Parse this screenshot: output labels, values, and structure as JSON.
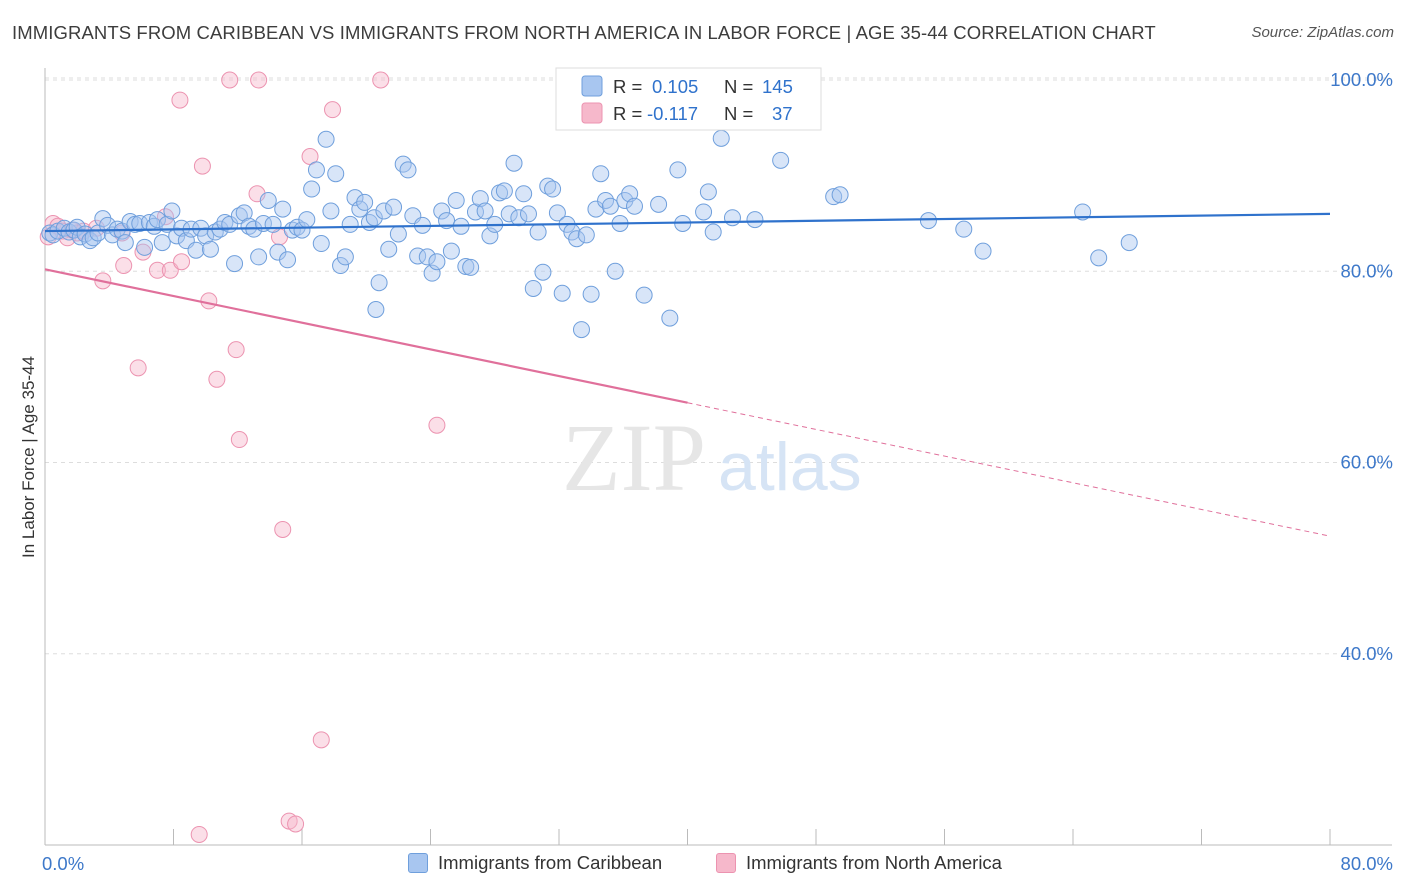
{
  "header": {
    "title": "IMMIGRANTS FROM CARIBBEAN VS IMMIGRANTS FROM NORTH AMERICA IN LABOR FORCE | AGE 35-44 CORRELATION CHART",
    "source": "Source: ZipAtlas.com"
  },
  "watermark": {
    "zip": "ZIP",
    "atlas": "atlas"
  },
  "legend_box": {
    "rows": [
      {
        "r_label": "R =",
        "r_value": "0.105",
        "n_label": "N =",
        "n_value": "145"
      },
      {
        "r_label": "R =",
        "r_value": "-0.117",
        "n_label": "N =",
        "n_value": "37"
      }
    ]
  },
  "legend_bottom": [
    {
      "label": "Immigrants from Caribbean"
    },
    {
      "label": "Immigrants from North America"
    }
  ],
  "colors": {
    "caribbean_fill": "#a8c6f0",
    "caribbean_stroke": "#6f9fdc",
    "caribbean_line": "#2f72cc",
    "north_america_fill": "#f6b8cb",
    "north_america_stroke": "#ec93b0",
    "north_america_line": "#e0709b",
    "axis_label_blue": "#3d78c9",
    "grid": "#dddddd"
  },
  "chart_data": {
    "type": "scatter",
    "title": "IMMIGRANTS FROM CARIBBEAN VS IMMIGRANTS FROM NORTH AMERICA IN LABOR FORCE | AGE 35-44 CORRELATION CHART",
    "xlabel": "",
    "ylabel": "In Labor Force | Age 35-44",
    "xlim": [
      0,
      80
    ],
    "ylim": [
      20,
      100
    ],
    "x_tick_labels": [
      "0.0%",
      "80.0%"
    ],
    "y_ticks": [
      40,
      60,
      80,
      100
    ],
    "y_tick_labels": [
      "40.0%",
      "60.0%",
      "80.0%",
      "100.0%"
    ],
    "grid": true,
    "legend_position": "top-center",
    "series": [
      {
        "name": "Immigrants from Caribbean",
        "r": 0.105,
        "n": 145,
        "trend": {
          "x": [
            0,
            80
          ],
          "y": [
            84.2,
            86.0
          ]
        },
        "points": [
          [
            0.3,
            84.0
          ],
          [
            0.5,
            83.8
          ],
          [
            0.8,
            84.2
          ],
          [
            1.2,
            84.5
          ],
          [
            1.5,
            84.1
          ],
          [
            1.8,
            84.3
          ],
          [
            2.0,
            84.6
          ],
          [
            2.2,
            83.6
          ],
          [
            2.5,
            83.9
          ],
          [
            2.8,
            83.2
          ],
          [
            3.0,
            83.5
          ],
          [
            3.3,
            84.0
          ],
          [
            3.6,
            85.5
          ],
          [
            3.9,
            84.8
          ],
          [
            4.2,
            83.8
          ],
          [
            4.5,
            84.4
          ],
          [
            4.8,
            84.2
          ],
          [
            5.0,
            83.0
          ],
          [
            5.3,
            85.2
          ],
          [
            5.6,
            84.9
          ],
          [
            5.9,
            85.0
          ],
          [
            6.2,
            82.5
          ],
          [
            6.5,
            85.1
          ],
          [
            6.8,
            84.7
          ],
          [
            7.0,
            85.4
          ],
          [
            7.3,
            83.0
          ],
          [
            7.6,
            84.9
          ],
          [
            7.9,
            86.3
          ],
          [
            8.2,
            83.7
          ],
          [
            8.5,
            84.5
          ],
          [
            8.8,
            83.2
          ],
          [
            9.1,
            84.4
          ],
          [
            9.4,
            82.2
          ],
          [
            9.7,
            84.5
          ],
          [
            10.0,
            83.7
          ],
          [
            10.3,
            82.3
          ],
          [
            10.6,
            84.1
          ],
          [
            10.9,
            84.4
          ],
          [
            11.2,
            85.1
          ],
          [
            11.5,
            84.9
          ],
          [
            11.8,
            80.8
          ],
          [
            12.1,
            85.8
          ],
          [
            12.4,
            86.1
          ],
          [
            12.7,
            84.7
          ],
          [
            13.0,
            84.4
          ],
          [
            13.3,
            81.5
          ],
          [
            13.6,
            85.0
          ],
          [
            13.9,
            87.4
          ],
          [
            14.2,
            84.9
          ],
          [
            14.5,
            82.0
          ],
          [
            14.8,
            86.5
          ],
          [
            15.1,
            81.2
          ],
          [
            15.4,
            84.3
          ],
          [
            15.7,
            84.6
          ],
          [
            16.0,
            84.3
          ],
          [
            16.3,
            85.4
          ],
          [
            16.6,
            88.6
          ],
          [
            16.9,
            90.6
          ],
          [
            17.2,
            82.9
          ],
          [
            17.5,
            93.8
          ],
          [
            17.8,
            86.3
          ],
          [
            18.1,
            90.2
          ],
          [
            18.4,
            80.6
          ],
          [
            18.7,
            81.5
          ],
          [
            19.0,
            84.9
          ],
          [
            19.3,
            87.7
          ],
          [
            19.6,
            86.5
          ],
          [
            19.9,
            87.2
          ],
          [
            20.2,
            85.1
          ],
          [
            20.5,
            85.6
          ],
          [
            20.8,
            78.8
          ],
          [
            20.6,
            76.0
          ],
          [
            21.1,
            86.3
          ],
          [
            21.4,
            82.3
          ],
          [
            21.7,
            86.7
          ],
          [
            22.0,
            83.9
          ],
          [
            22.3,
            91.2
          ],
          [
            22.6,
            90.6
          ],
          [
            22.9,
            85.8
          ],
          [
            23.2,
            81.6
          ],
          [
            23.5,
            84.8
          ],
          [
            23.8,
            81.5
          ],
          [
            24.1,
            79.8
          ],
          [
            24.4,
            81.0
          ],
          [
            24.7,
            86.3
          ],
          [
            25.0,
            85.3
          ],
          [
            25.3,
            82.1
          ],
          [
            25.6,
            87.4
          ],
          [
            25.9,
            84.7
          ],
          [
            26.2,
            80.5
          ],
          [
            26.5,
            80.4
          ],
          [
            26.8,
            86.2
          ],
          [
            27.1,
            87.6
          ],
          [
            27.4,
            86.3
          ],
          [
            27.7,
            83.7
          ],
          [
            28.0,
            84.9
          ],
          [
            28.3,
            88.2
          ],
          [
            28.6,
            88.4
          ],
          [
            28.9,
            86.0
          ],
          [
            29.2,
            91.3
          ],
          [
            29.5,
            85.6
          ],
          [
            29.8,
            88.1
          ],
          [
            30.1,
            86.0
          ],
          [
            30.4,
            78.2
          ],
          [
            30.7,
            84.1
          ],
          [
            31.0,
            79.9
          ],
          [
            31.3,
            88.9
          ],
          [
            31.6,
            88.6
          ],
          [
            31.9,
            86.1
          ],
          [
            32.2,
            77.7
          ],
          [
            32.5,
            84.9
          ],
          [
            32.8,
            84.1
          ],
          [
            33.1,
            83.4
          ],
          [
            33.4,
            73.9
          ],
          [
            33.7,
            83.8
          ],
          [
            34.0,
            77.6
          ],
          [
            34.3,
            86.5
          ],
          [
            34.6,
            90.2
          ],
          [
            34.9,
            87.4
          ],
          [
            35.2,
            86.8
          ],
          [
            35.5,
            80.0
          ],
          [
            35.8,
            85.0
          ],
          [
            36.1,
            87.4
          ],
          [
            36.4,
            88.1
          ],
          [
            36.7,
            86.8
          ],
          [
            37.3,
            77.5
          ],
          [
            38.2,
            87.0
          ],
          [
            38.9,
            75.1
          ],
          [
            39.4,
            90.6
          ],
          [
            39.7,
            85.0
          ],
          [
            41.0,
            86.2
          ],
          [
            41.3,
            88.3
          ],
          [
            41.6,
            84.1
          ],
          [
            42.1,
            93.9
          ],
          [
            42.8,
            85.6
          ],
          [
            44.2,
            85.4
          ],
          [
            45.8,
            91.6
          ],
          [
            55.0,
            85.3
          ],
          [
            64.6,
            86.2
          ],
          [
            65.6,
            81.4
          ],
          [
            67.5,
            83.0
          ],
          [
            57.2,
            84.4
          ],
          [
            58.4,
            82.1
          ],
          [
            49.1,
            87.8
          ],
          [
            49.5,
            88.0
          ]
        ]
      },
      {
        "name": "Immigrants from North America",
        "r": -0.117,
        "n": 37,
        "trend": {
          "x": [
            0,
            80
          ],
          "y": [
            80.2,
            52.3
          ],
          "solid_to_x": 40
        },
        "points": [
          [
            0.2,
            83.6
          ],
          [
            0.5,
            85.0
          ],
          [
            0.8,
            84.7
          ],
          [
            1.1,
            84.2
          ],
          [
            1.4,
            83.5
          ],
          [
            1.7,
            84.3
          ],
          [
            2.0,
            84.0
          ],
          [
            2.4,
            84.2
          ],
          [
            3.2,
            84.5
          ],
          [
            4.8,
            84.0
          ],
          [
            3.6,
            79.0
          ],
          [
            4.9,
            80.6
          ],
          [
            5.8,
            69.9
          ],
          [
            6.1,
            82.0
          ],
          [
            7.0,
            80.1
          ],
          [
            7.5,
            85.7
          ],
          [
            7.8,
            80.1
          ],
          [
            8.5,
            81.0
          ],
          [
            8.4,
            97.9
          ],
          [
            9.8,
            91.0
          ],
          [
            10.2,
            76.9
          ],
          [
            10.7,
            68.7
          ],
          [
            11.5,
            100.0
          ],
          [
            11.9,
            71.8
          ],
          [
            12.1,
            62.4
          ],
          [
            13.2,
            88.1
          ],
          [
            13.3,
            100.0
          ],
          [
            14.6,
            83.6
          ],
          [
            14.8,
            53.0
          ],
          [
            16.5,
            92.0
          ],
          [
            17.9,
            96.9
          ],
          [
            20.9,
            100.0
          ],
          [
            24.4,
            63.9
          ],
          [
            9.6,
            21.1
          ],
          [
            15.2,
            22.5
          ],
          [
            15.6,
            22.2
          ],
          [
            17.2,
            31.0
          ]
        ]
      }
    ]
  }
}
